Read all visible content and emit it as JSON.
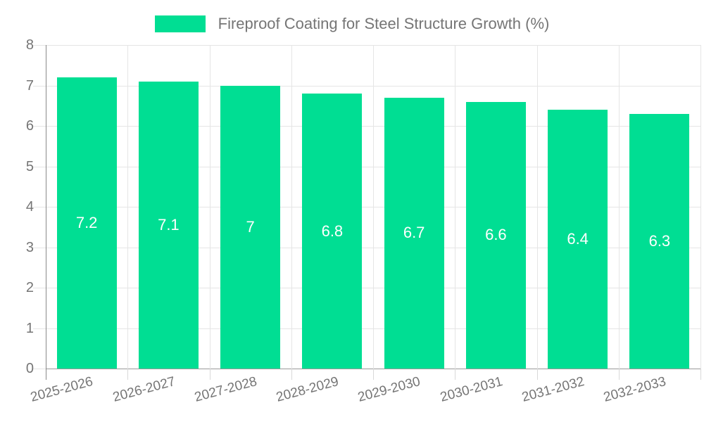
{
  "colors": {
    "bar": "#00DE93",
    "label_text": "#757575",
    "grid_line": "#e5e5e5",
    "y_axis_line": "#8a8a8a",
    "x_baseline": "#999999",
    "tick_below": "#d9d9d9",
    "bar_value_text": "#ffffff",
    "background": "#ffffff"
  },
  "chart_data": {
    "type": "bar",
    "title": "Fireproof Coating for Steel Structure Growth (%)",
    "categories": [
      "2025-2026",
      "2026-2027",
      "2027-2028",
      "2028-2029",
      "2029-2030",
      "2030-2031",
      "2031-2032",
      "2032-2033"
    ],
    "values": [
      7.2,
      7.1,
      7,
      6.8,
      6.7,
      6.6,
      6.4,
      6.3
    ],
    "series_name": "Fireproof Coating for Steel Structure Growth (%)",
    "xlabel": "",
    "ylabel": "",
    "ylim": [
      0,
      8
    ],
    "yticks": [
      0,
      1,
      2,
      3,
      4,
      5,
      6,
      7,
      8
    ],
    "grid": true,
    "legend_position": "top-center",
    "bar_labels_inside": true,
    "x_label_rotation_deg": -15
  }
}
